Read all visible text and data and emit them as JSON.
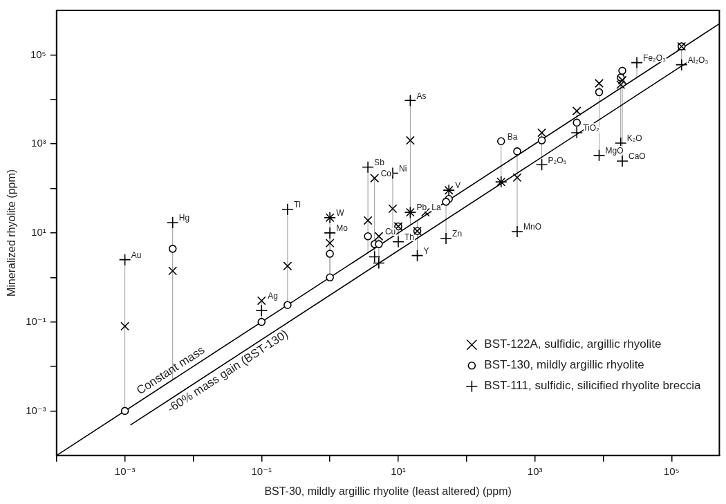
{
  "chart_data": {
    "type": "scatter",
    "xlabel": "BST-30, mildly argillic rhyolite (least altered) (ppm)",
    "ylabel": "Mineralized rhyolite (ppm)",
    "x": [
      0.001,
      0.005,
      0.1,
      0.24,
      1,
      1,
      3.6,
      4.5,
      5.2,
      8.3,
      10,
      15,
      15,
      25,
      19,
      55,
      50,
      320,
      550,
      1260,
      4100,
      8700,
      18000,
      19000,
      31000,
      140000
    ],
    "series": [
      {
        "name": "BST-122A, sulfidic, argillic rhyolite",
        "color": "#000000",
        "marker": "x",
        "values": [
          0.08,
          1.4,
          0.3,
          1.8,
          22,
          5.9,
          19,
          170,
          8.4,
          35,
          14,
          1200,
          29,
          29,
          11,
          91,
          null,
          140,
          175,
          1780,
          5500,
          23000,
          21500,
          27000,
          null,
          155000
        ]
      },
      {
        "name": "BST-130, mildly argillic rhyolite",
        "color": "#000000",
        "marker": "circle",
        "values": [
          0.001,
          4.4,
          0.1,
          0.24,
          1,
          3.4,
          8.4,
          5.6,
          5.6,
          null,
          14,
          null,
          null,
          null,
          11,
          58,
          50,
          1150,
          680,
          1200,
          3000,
          14500,
          31000,
          44000,
          null,
          155000
        ]
      },
      {
        "name": "BST-111, sulfidic, silicified rhyolite breccia",
        "color": "#000000",
        "marker": "cross",
        "values": [
          2.5,
          17,
          0.18,
          34,
          22,
          10,
          300,
          2.9,
          2.1,
          220,
          6.3,
          9500,
          29,
          null,
          3.1,
          91,
          7.5,
          140,
          10.7,
          340,
          1780,
          550,
          1040,
          410,
          67000,
          60000
        ]
      },
      {
        "name": "Constant mass",
        "type": "line",
        "color": "#000000",
        "marker": "none",
        "x": [
          0.0001,
          500000
        ],
        "values": [
          0.0001,
          500000
        ]
      },
      {
        "name": "-60% mass gain (BST-130)",
        "type": "line",
        "color": "#000000",
        "marker": "none",
        "x": [
          0.0012,
          220000
        ],
        "values": [
          0.00048,
          88000
        ]
      }
    ],
    "xlim": [
      0.0001,
      500000
    ],
    "ylim": [
      0.0001,
      1000000
    ],
    "xticks": [
      {
        "value": 0.0001,
        "label": null
      },
      {
        "value": 0.001,
        "label": "10⁻³"
      },
      {
        "value": 0.01,
        "label": null
      },
      {
        "value": 0.1,
        "label": "10⁻¹"
      },
      {
        "value": 1,
        "label": null
      },
      {
        "value": 10,
        "label": "10¹"
      },
      {
        "value": 100,
        "label": null
      },
      {
        "value": 1000,
        "label": "10³"
      },
      {
        "value": 10000,
        "label": null
      },
      {
        "value": 100000,
        "label": "10⁵"
      }
    ],
    "yticks": [
      {
        "value": 0.001,
        "label": "10⁻³"
      },
      {
        "value": 0.01,
        "label": null
      },
      {
        "value": 0.1,
        "label": "10⁻¹"
      },
      {
        "value": 1,
        "label": null
      },
      {
        "value": 10,
        "label": "10¹"
      },
      {
        "value": 100,
        "label": null
      },
      {
        "value": 1000,
        "label": "10³"
      },
      {
        "value": 10000,
        "label": null
      },
      {
        "value": 100000,
        "label": "10⁵"
      }
    ],
    "log": "xy",
    "grid": false,
    "legend": "bottom right",
    "annotations": [
      {
        "text": "Au",
        "x": 0.001,
        "y": 2.5
      },
      {
        "text": "Hg",
        "x": 0.005,
        "y": 17
      },
      {
        "text": "Ag",
        "x": 0.1,
        "y": 0.3
      },
      {
        "text": "Tl",
        "x": 0.24,
        "y": 34
      },
      {
        "text": "W",
        "x": 1,
        "y": 22
      },
      {
        "text": "Mo",
        "x": 1,
        "y": 10
      },
      {
        "text": "Sb",
        "x": 3.6,
        "y": 300
      },
      {
        "text": "Co",
        "x": 4.5,
        "y": 170
      },
      {
        "text": "Cu",
        "x": 5.2,
        "y": 8.4
      },
      {
        "text": "Ni",
        "x": 8.3,
        "y": 220
      },
      {
        "text": "Th",
        "x": 10,
        "y": 6.3
      },
      {
        "text": "As",
        "x": 15,
        "y": 9500
      },
      {
        "text": "Pb",
        "x": 15,
        "y": 29
      },
      {
        "text": "La",
        "x": 25,
        "y": 29
      },
      {
        "text": "Y",
        "x": 19,
        "y": 3.1
      },
      {
        "text": "V",
        "x": 55,
        "y": 91
      },
      {
        "text": "Zn",
        "x": 50,
        "y": 7.5
      },
      {
        "text": "Ba",
        "x": 320,
        "y": 1150
      },
      {
        "text": "MnO",
        "x": 550,
        "y": 10.7
      },
      {
        "text": "P₂O₅",
        "x": 1260,
        "y": 340
      },
      {
        "text": "TiO₂",
        "x": 4100,
        "y": 1780
      },
      {
        "text": "MgO",
        "x": 8700,
        "y": 550
      },
      {
        "text": "K₂O",
        "x": 18000,
        "y": 1040
      },
      {
        "text": "CaO",
        "x": 19000,
        "y": 410
      },
      {
        "text": "Fe₂O₃",
        "x": 31000,
        "y": 67000
      },
      {
        "text": "Al₂O₃",
        "x": 140000,
        "y": 60000
      }
    ]
  }
}
